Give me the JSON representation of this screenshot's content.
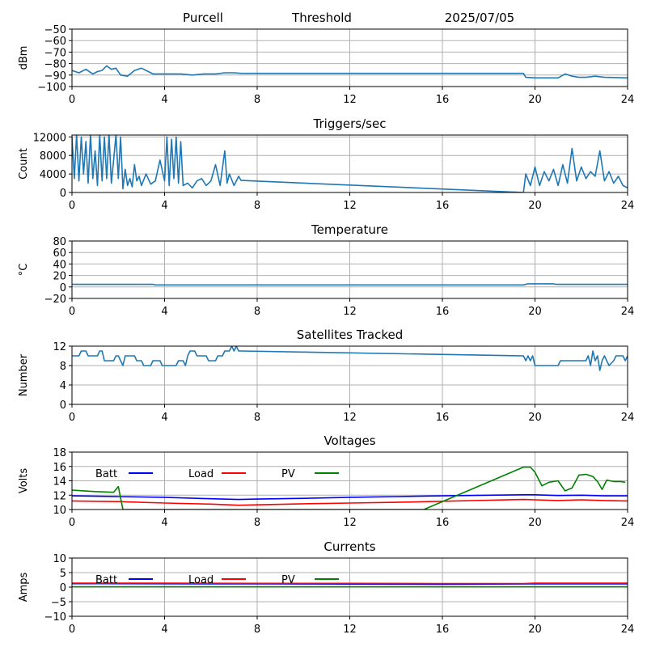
{
  "header": {
    "station": "Purcell",
    "kind": "Threshold",
    "date": "2025/07/05"
  },
  "colors": {
    "series": "#1f77b4",
    "batt": "#0000ff",
    "load": "#ff0000",
    "pv": "#008000",
    "grid": "#b0b0b0"
  },
  "chart_data": [
    {
      "id": "threshold",
      "type": "line",
      "title": "",
      "xlabel": "",
      "ylabel": "dBm",
      "xlim": [
        0,
        24
      ],
      "ylim": [
        -100,
        -50
      ],
      "xticks": [
        0,
        4,
        8,
        12,
        16,
        20,
        24
      ],
      "yticks": [
        -100,
        -90,
        -80,
        -70,
        -60,
        -50
      ],
      "grid": true,
      "series": [
        {
          "color": "#1f77b4",
          "x": [
            0,
            0.3,
            0.6,
            0.9,
            1.1,
            1.3,
            1.5,
            1.7,
            1.9,
            2.1,
            2.4,
            2.7,
            3.0,
            3.2,
            3.5,
            3.8,
            4.2,
            4.7,
            5.2,
            5.7,
            6.2,
            6.6,
            7.0,
            7.3,
            8,
            12,
            16,
            19.5,
            19.6,
            20,
            21,
            21.3,
            21.6,
            21.9,
            22.2,
            22.6,
            23,
            24
          ],
          "y": [
            -86,
            -88,
            -85,
            -89,
            -87,
            -86,
            -82,
            -85,
            -84,
            -90,
            -91,
            -86,
            -84,
            -86,
            -89,
            -89,
            -89,
            -89,
            -90,
            -89,
            -89,
            -88,
            -88,
            -88.5,
            -88.5,
            -88.5,
            -88.5,
            -88.5,
            -92,
            -92.5,
            -92.5,
            -89,
            -91,
            -92,
            -92,
            -91,
            -92,
            -92.5
          ]
        }
      ]
    },
    {
      "id": "triggers",
      "type": "line",
      "title": "Triggers/sec",
      "xlabel": "",
      "ylabel": "Count",
      "xlim": [
        0,
        24
      ],
      "ylim": [
        0,
        12400
      ],
      "xticks": [
        0,
        4,
        8,
        12,
        16,
        20,
        24
      ],
      "yticks": [
        0,
        4000,
        8000,
        12000
      ],
      "grid": true,
      "series": [
        {
          "color": "#1f77b4",
          "x": [
            0,
            0.1,
            0.2,
            0.3,
            0.4,
            0.5,
            0.6,
            0.7,
            0.8,
            0.9,
            1.0,
            1.1,
            1.2,
            1.3,
            1.4,
            1.5,
            1.6,
            1.7,
            1.8,
            1.9,
            2.0,
            2.1,
            2.2,
            2.3,
            2.4,
            2.5,
            2.6,
            2.7,
            2.8,
            2.9,
            3.0,
            3.2,
            3.4,
            3.6,
            3.8,
            4.0,
            4.1,
            4.2,
            4.3,
            4.4,
            4.5,
            4.6,
            4.7,
            4.8,
            5.0,
            5.2,
            5.4,
            5.6,
            5.8,
            6.0,
            6.2,
            6.4,
            6.6,
            6.7,
            6.8,
            7.0,
            7.2,
            7.3,
            19.5,
            19.6,
            19.8,
            20.0,
            20.2,
            20.4,
            20.6,
            20.8,
            21.0,
            21.2,
            21.4,
            21.6,
            21.8,
            22.0,
            22.2,
            22.4,
            22.6,
            22.8,
            23.0,
            23.2,
            23.4,
            23.6,
            23.8,
            24.0
          ],
          "y": [
            12000,
            3000,
            12500,
            2500,
            12000,
            4000,
            11000,
            2000,
            12500,
            3000,
            9000,
            1500,
            12500,
            2500,
            12000,
            3000,
            12500,
            2000,
            7000,
            12500,
            3000,
            12000,
            800,
            5000,
            1500,
            3000,
            1200,
            6000,
            2500,
            3500,
            1500,
            4000,
            1800,
            2500,
            7000,
            2500,
            12000,
            1500,
            11500,
            3000,
            12000,
            2000,
            11000,
            1500,
            2000,
            1000,
            2500,
            3000,
            1500,
            2500,
            6000,
            1500,
            9000,
            2000,
            4000,
            1500,
            3500,
            2600,
            0,
            4000,
            1500,
            5500,
            1500,
            4500,
            2500,
            5000,
            1500,
            6000,
            2000,
            9500,
            2500,
            5500,
            3000,
            4500,
            3500,
            9000,
            2500,
            4500,
            2000,
            3500,
            1500,
            1000
          ]
        }
      ]
    },
    {
      "id": "temperature",
      "type": "line",
      "title": "Temperature",
      "xlabel": "",
      "ylabel": "°C",
      "xlim": [
        0,
        24
      ],
      "ylim": [
        -20,
        80
      ],
      "xticks": [
        0,
        4,
        8,
        12,
        16,
        20,
        24
      ],
      "yticks": [
        -20,
        0,
        20,
        40,
        60,
        80
      ],
      "grid": true,
      "series": [
        {
          "color": "#1f77b4",
          "x": [
            0,
            3.5,
            3.6,
            16,
            19.5,
            19.7,
            20.8,
            20.9,
            24
          ],
          "y": [
            4.5,
            4.5,
            3.5,
            3.5,
            3.5,
            5.5,
            5.5,
            4.5,
            4.5
          ]
        }
      ]
    },
    {
      "id": "satellites",
      "type": "line",
      "title": "Satellites Tracked",
      "xlabel": "",
      "ylabel": "Number",
      "xlim": [
        0,
        24
      ],
      "ylim": [
        0,
        12
      ],
      "xticks": [
        0,
        4,
        8,
        12,
        16,
        20,
        24
      ],
      "yticks": [
        0,
        4,
        8,
        12
      ],
      "grid": true,
      "series": [
        {
          "color": "#1f77b4",
          "x": [
            0,
            0.3,
            0.4,
            0.6,
            0.7,
            1.1,
            1.2,
            1.3,
            1.4,
            1.8,
            1.9,
            2.0,
            2.1,
            2.2,
            2.3,
            2.7,
            2.8,
            3.0,
            3.1,
            3.4,
            3.5,
            3.8,
            3.9,
            4.5,
            4.6,
            4.8,
            4.9,
            5.0,
            5.1,
            5.3,
            5.4,
            5.8,
            5.9,
            6.2,
            6.3,
            6.5,
            6.6,
            6.8,
            6.9,
            7.0,
            7.1,
            7.2,
            7.3,
            19.5,
            19.6,
            19.7,
            19.8,
            19.9,
            20.0,
            21.0,
            21.1,
            22.2,
            22.3,
            22.4,
            22.5,
            22.6,
            22.7,
            22.8,
            22.9,
            23.0,
            23.1,
            23.2,
            23.4,
            23.5,
            23.8,
            23.9,
            24.0
          ],
          "y": [
            10,
            10,
            11,
            11,
            10,
            10,
            11,
            11,
            9,
            9,
            10,
            10,
            9,
            8,
            10,
            10,
            9,
            9,
            8,
            8,
            9,
            9,
            8,
            8,
            9,
            9,
            8,
            10,
            11,
            11,
            10,
            10,
            9,
            9,
            10,
            10,
            11,
            11,
            12,
            11,
            12,
            11,
            11,
            10,
            9,
            10,
            9,
            10,
            8,
            8,
            9,
            9,
            10,
            8,
            11,
            9,
            10,
            7,
            9,
            10,
            9,
            8,
            9,
            10,
            10,
            9,
            10
          ]
        }
      ]
    },
    {
      "id": "voltages",
      "type": "line",
      "title": "Voltages",
      "xlabel": "",
      "ylabel": "Volts",
      "xlim": [
        0,
        24
      ],
      "ylim": [
        10,
        18
      ],
      "xticks": [
        0,
        4,
        8,
        12,
        16,
        20,
        24
      ],
      "yticks": [
        10,
        12,
        14,
        16,
        18
      ],
      "grid": true,
      "legend_placement": "top-left, single row",
      "series": [
        {
          "name": "Batt",
          "color": "#0000ff",
          "x": [
            0,
            2,
            4,
            6,
            7.2,
            8,
            10,
            12,
            14,
            16,
            18,
            19.5,
            20,
            21,
            22,
            23,
            24
          ],
          "y": [
            11.9,
            11.8,
            11.7,
            11.5,
            11.4,
            11.45,
            11.55,
            11.7,
            11.8,
            11.9,
            12.0,
            12.05,
            12.05,
            11.95,
            12.0,
            11.9,
            11.9
          ]
        },
        {
          "name": "Load",
          "color": "#ff0000",
          "x": [
            0,
            2,
            4,
            6,
            7.2,
            8,
            10,
            12,
            14,
            16,
            18,
            19.5,
            20,
            21,
            22,
            23,
            24
          ],
          "y": [
            11.2,
            11.1,
            10.9,
            10.75,
            10.6,
            10.65,
            10.8,
            10.9,
            11.0,
            11.15,
            11.3,
            11.4,
            11.35,
            11.25,
            11.35,
            11.25,
            11.2
          ]
        },
        {
          "name": "PV",
          "color": "#008000",
          "x": [
            0,
            0.5,
            1,
            1.8,
            2.0,
            2.2,
            15.2,
            19.5,
            19.8,
            20.0,
            20.3,
            20.6,
            21.0,
            21.3,
            21.6,
            21.9,
            22.2,
            22.5,
            22.7,
            22.9,
            23.1,
            23.4,
            23.7,
            23.9
          ],
          "y": [
            12.7,
            12.6,
            12.5,
            12.4,
            13.2,
            10,
            10,
            15.9,
            15.9,
            15.2,
            13.3,
            13.8,
            14.0,
            12.6,
            13.0,
            14.8,
            14.9,
            14.6,
            13.9,
            12.8,
            14.1,
            13.9,
            13.9,
            13.8
          ]
        }
      ]
    },
    {
      "id": "currents",
      "type": "line",
      "title": "Currents",
      "xlabel": "",
      "ylabel": "Amps",
      "xlim": [
        0,
        24
      ],
      "ylim": [
        -10,
        10
      ],
      "xticks": [
        0,
        4,
        8,
        12,
        16,
        20,
        24
      ],
      "yticks": [
        -10,
        -5,
        0,
        5,
        10
      ],
      "grid": true,
      "legend_placement": "top-left, single row",
      "series": [
        {
          "name": "Batt",
          "color": "#0000ff",
          "x": [
            0,
            8,
            16,
            20,
            24
          ],
          "y": [
            1.2,
            1.1,
            1.0,
            1.1,
            1.1
          ]
        },
        {
          "name": "Load",
          "color": "#ff0000",
          "x": [
            0,
            4,
            8,
            12,
            16,
            19.5,
            20,
            24
          ],
          "y": [
            1.4,
            1.35,
            1.3,
            1.3,
            1.25,
            1.25,
            1.35,
            1.35
          ]
        },
        {
          "name": "PV",
          "color": "#008000",
          "x": [
            0,
            24
          ],
          "y": [
            0.1,
            0.1
          ]
        }
      ]
    }
  ]
}
